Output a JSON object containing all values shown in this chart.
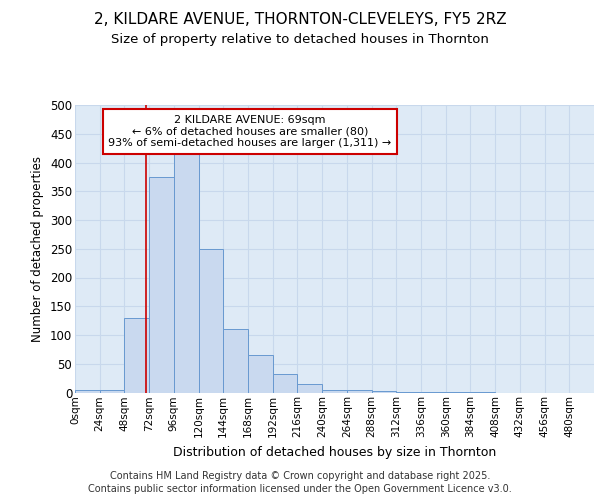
{
  "title1": "2, KILDARE AVENUE, THORNTON-CLEVELEYS, FY5 2RZ",
  "title2": "Size of property relative to detached houses in Thornton",
  "xlabel": "Distribution of detached houses by size in Thornton",
  "ylabel": "Number of detached properties",
  "bin_edges": [
    0,
    24,
    48,
    72,
    96,
    120,
    144,
    168,
    192,
    216,
    240,
    264,
    288,
    312,
    336,
    360,
    384,
    408,
    432,
    456,
    480,
    504
  ],
  "bar_heights": [
    4,
    5,
    130,
    375,
    415,
    250,
    110,
    65,
    33,
    15,
    5,
    5,
    2,
    1,
    1,
    1,
    1,
    0,
    0,
    0,
    0
  ],
  "bar_color": "#c9d9ef",
  "bar_edge_color": "#6899d0",
  "vline_x": 69,
  "vline_color": "#cc0000",
  "annotation_line1": "2 KILDARE AVENUE: 69sqm",
  "annotation_line2": "← 6% of detached houses are smaller (80)",
  "annotation_line3": "93% of semi-detached houses are larger (1,311) →",
  "annotation_box_color": "#ffffff",
  "annotation_box_edge_color": "#cc0000",
  "ylim": [
    0,
    500
  ],
  "yticks": [
    0,
    50,
    100,
    150,
    200,
    250,
    300,
    350,
    400,
    450,
    500
  ],
  "xtick_labels": [
    "0sqm",
    "24sqm",
    "48sqm",
    "72sqm",
    "96sqm",
    "120sqm",
    "144sqm",
    "168sqm",
    "192sqm",
    "216sqm",
    "240sqm",
    "264sqm",
    "288sqm",
    "312sqm",
    "336sqm",
    "360sqm",
    "384sqm",
    "408sqm",
    "432sqm",
    "456sqm",
    "480sqm"
  ],
  "grid_color": "#c8d8ec",
  "background_color": "#deeaf6",
  "fig_background": "#ffffff",
  "footer1": "Contains HM Land Registry data © Crown copyright and database right 2025.",
  "footer2": "Contains public sector information licensed under the Open Government Licence v3.0."
}
